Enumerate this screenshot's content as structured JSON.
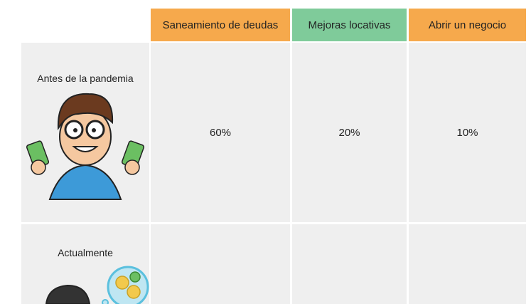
{
  "table": {
    "columns": [
      "Saneamiento de deudas",
      "Mejoras locativas",
      "Abrir un negocio"
    ],
    "rows": [
      {
        "label": "Antes de la pandemia",
        "cells": [
          "60%",
          "20%",
          "10%"
        ]
      },
      {
        "label": "Actualmente"
      }
    ]
  }
}
